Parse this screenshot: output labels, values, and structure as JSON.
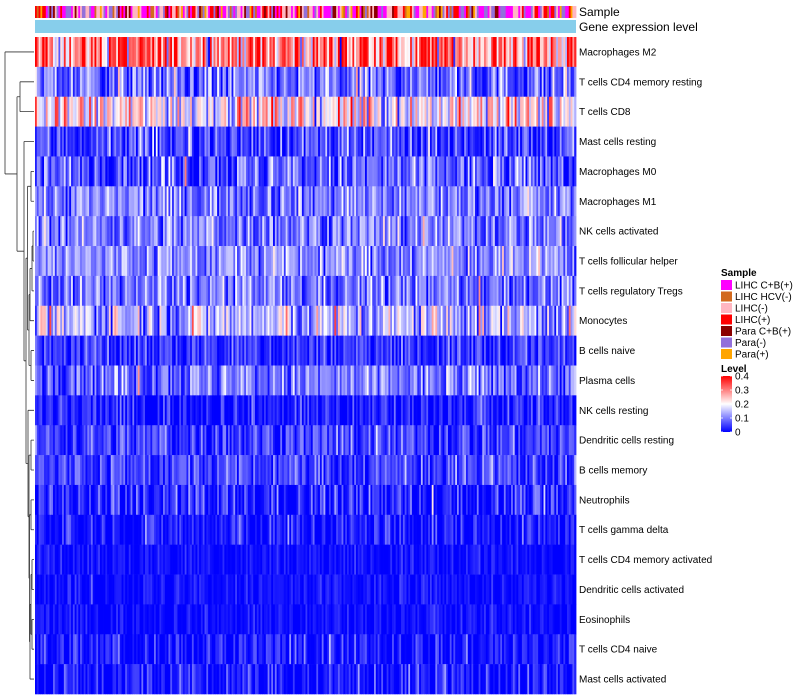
{
  "chart_data": {
    "type": "heatmap",
    "annotation_tracks": [
      {
        "name": "Sample",
        "label": "Sample"
      },
      {
        "name": "Gene expression level",
        "label": "Gene expression level",
        "color": "#87CEEB"
      }
    ],
    "row_labels": [
      "Macrophages M2",
      "T cells CD4 memory resting",
      "T cells CD8",
      "Mast cells resting",
      "Macrophages M0",
      "Macrophages M1",
      "NK cells activated",
      "T cells follicular helper",
      "T cells regulatory  Tregs",
      "Monocytes",
      "B cells naive",
      "Plasma cells",
      "NK cells resting",
      "Dendritic cells resting",
      "B cells memory",
      "Neutrophils",
      "T cells gamma delta",
      "T cells CD4 memory activated",
      "Dendritic cells activated",
      "Eosinophils",
      "T cells CD4 naive",
      "Mast cells activated"
    ],
    "row_mean_level": [
      0.3,
      0.08,
      0.2,
      0.05,
      0.07,
      0.1,
      0.1,
      0.11,
      0.09,
      0.14,
      0.04,
      0.09,
      0.02,
      0.05,
      0.05,
      0.02,
      0.015,
      0.01,
      0.01,
      0.01,
      0.015,
      0.015
    ],
    "row_variability": [
      0.1,
      0.06,
      0.08,
      0.05,
      0.06,
      0.05,
      0.05,
      0.05,
      0.05,
      0.07,
      0.04,
      0.05,
      0.04,
      0.04,
      0.04,
      0.05,
      0.04,
      0.02,
      0.02,
      0.02,
      0.04,
      0.04
    ],
    "sample_legend": {
      "title": "Sample",
      "entries": [
        {
          "label": "LIHC C+B(+)",
          "color": "#FF00FF"
        },
        {
          "label": "LIHC HCV(-)",
          "color": "#D2691E"
        },
        {
          "label": "LIHC(-)",
          "color": "#FFB6C1"
        },
        {
          "label": "LIHC(+)",
          "color": "#FF0000"
        },
        {
          "label": "Para C+B(+)",
          "color": "#8B0000"
        },
        {
          "label": "Para(-)",
          "color": "#9370DB"
        },
        {
          "label": "Para(+)",
          "color": "#FFA500"
        }
      ]
    },
    "level_legend": {
      "title": "Level",
      "ticks": [
        "0.4",
        "0.3",
        "0.2",
        "0.1",
        "0"
      ],
      "range": [
        0,
        0.4
      ],
      "colors": {
        "low": "#0000FF",
        "mid": "#FFFFFF",
        "high": "#FF0000"
      }
    },
    "column_count": 300
  }
}
